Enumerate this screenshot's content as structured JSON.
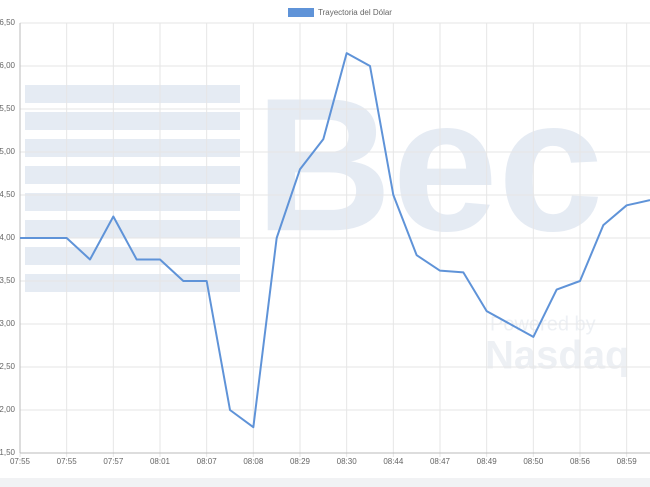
{
  "chart_data": {
    "type": "line",
    "legend": "top",
    "categories": [
      "07:55",
      null,
      "07:55",
      null,
      "07:57",
      null,
      "08:01",
      null,
      "08:07",
      null,
      "08:08",
      null,
      "08:29",
      null,
      "08:30",
      null,
      "08:44",
      null,
      "08:47",
      null,
      "08:49",
      null,
      "08:50",
      null,
      "08:56",
      null,
      "08:59",
      null
    ],
    "series": [
      {
        "name": "Trayectoria del Dólar",
        "color": "#5f93d8",
        "values": [
          4.0,
          4.0,
          4.0,
          3.75,
          4.25,
          3.75,
          3.75,
          3.5,
          3.5,
          2.0,
          1.8,
          4.0,
          4.8,
          5.15,
          6.15,
          6.0,
          4.5,
          3.8,
          3.62,
          3.6,
          3.15,
          3.0,
          2.85,
          3.4,
          3.5,
          4.15,
          4.38,
          4.44
        ]
      }
    ],
    "ylim": [
      1.5,
      6.5
    ],
    "yticks": [
      {
        "value": 1.5,
        "label": "1,50"
      },
      {
        "value": 2.0,
        "label": "2,00"
      },
      {
        "value": 2.5,
        "label": "2,50"
      },
      {
        "value": 3.0,
        "label": "3,00"
      },
      {
        "value": 3.5,
        "label": "3,50"
      },
      {
        "value": 4.0,
        "label": "4,00"
      },
      {
        "value": 4.5,
        "label": "4,50"
      },
      {
        "value": 5.0,
        "label": "5,00"
      },
      {
        "value": 5.5,
        "label": "5,50"
      },
      {
        "value": 6.0,
        "label": "6,00"
      },
      {
        "value": 6.5,
        "label": "6,50"
      }
    ],
    "grid": true
  },
  "watermark": {
    "brand": "Bec",
    "powered": "Powered by",
    "partner": "Nasdaq"
  }
}
